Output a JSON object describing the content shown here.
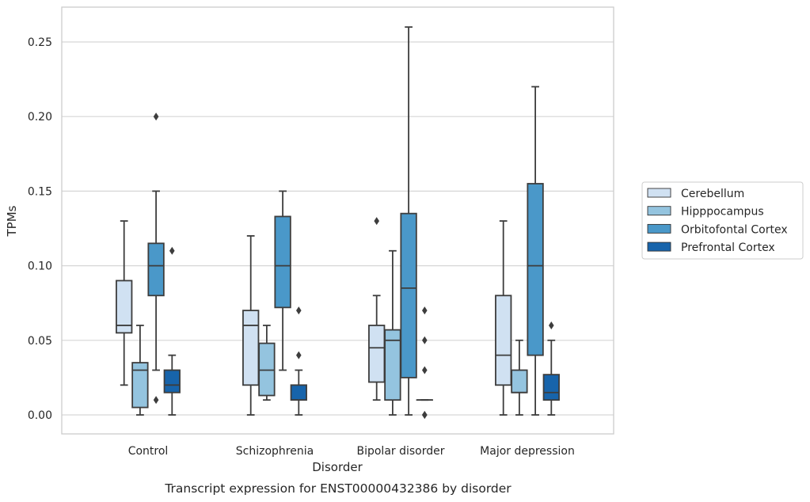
{
  "chart_data": {
    "type": "box",
    "title": "",
    "caption": "Transcript expression for ENST00000432386 by disorder",
    "xlabel": "Disorder",
    "ylabel": "TPMs",
    "ylim": [
      -0.0125,
      0.273
    ],
    "yticks": [
      "0.00",
      "0.05",
      "0.10",
      "0.15",
      "0.20",
      "0.25"
    ],
    "grid": true,
    "legend_position": "right",
    "categories": [
      "Control",
      "Schizophrenia",
      "Bipolar disorder",
      "Major depression"
    ],
    "series": [
      {
        "name": "Cerebellum",
        "color": "#d0e1f2",
        "boxes": [
          {
            "whisker_low": 0.02,
            "q1": 0.055,
            "median": 0.06,
            "q3": 0.09,
            "whisker_high": 0.13,
            "outliers": []
          },
          {
            "whisker_low": 0.0,
            "q1": 0.02,
            "median": 0.06,
            "q3": 0.07,
            "whisker_high": 0.12,
            "outliers": []
          },
          {
            "whisker_low": 0.01,
            "q1": 0.022,
            "median": 0.045,
            "q3": 0.06,
            "whisker_high": 0.08,
            "outliers": [
              0.13
            ]
          },
          {
            "whisker_low": 0.0,
            "q1": 0.02,
            "median": 0.04,
            "q3": 0.08,
            "whisker_high": 0.13,
            "outliers": []
          }
        ]
      },
      {
        "name": "Hipppocampus",
        "color": "#94c4df",
        "boxes": [
          {
            "whisker_low": 0.0,
            "q1": 0.005,
            "median": 0.03,
            "q3": 0.035,
            "whisker_high": 0.06,
            "outliers": []
          },
          {
            "whisker_low": 0.01,
            "q1": 0.013,
            "median": 0.03,
            "q3": 0.048,
            "whisker_high": 0.06,
            "outliers": []
          },
          {
            "whisker_low": 0.0,
            "q1": 0.01,
            "median": 0.05,
            "q3": 0.057,
            "whisker_high": 0.11,
            "outliers": []
          },
          {
            "whisker_low": 0.0,
            "q1": 0.015,
            "median": 0.015,
            "q3": 0.03,
            "whisker_high": 0.05,
            "outliers": []
          }
        ]
      },
      {
        "name": "Orbitofontal Cortex",
        "color": "#4a98c9",
        "boxes": [
          {
            "whisker_low": 0.03,
            "q1": 0.08,
            "median": 0.1,
            "q3": 0.115,
            "whisker_high": 0.15,
            "outliers": [
              0.2,
              0.01
            ]
          },
          {
            "whisker_low": 0.03,
            "q1": 0.072,
            "median": 0.1,
            "q3": 0.133,
            "whisker_high": 0.15,
            "outliers": []
          },
          {
            "whisker_low": 0.0,
            "q1": 0.025,
            "median": 0.085,
            "q3": 0.135,
            "whisker_high": 0.26,
            "outliers": []
          },
          {
            "whisker_low": 0.0,
            "q1": 0.04,
            "median": 0.1,
            "q3": 0.155,
            "whisker_high": 0.22,
            "outliers": []
          }
        ]
      },
      {
        "name": "Prefrontal Cortex",
        "color": "#1764ab",
        "boxes": [
          {
            "whisker_low": 0.0,
            "q1": 0.015,
            "median": 0.02,
            "q3": 0.03,
            "whisker_high": 0.04,
            "outliers": [
              0.11
            ]
          },
          {
            "whisker_low": 0.0,
            "q1": 0.01,
            "median": 0.01,
            "q3": 0.02,
            "whisker_high": 0.03,
            "outliers": [
              0.07,
              0.04
            ]
          },
          {
            "whisker_low": 0.01,
            "q1": 0.01,
            "median": 0.01,
            "q3": 0.01,
            "whisker_high": 0.01,
            "outliers": [
              0.07,
              0.05,
              0.03,
              0.0,
              0.0
            ]
          },
          {
            "whisker_low": 0.0,
            "q1": 0.01,
            "median": 0.015,
            "q3": 0.027,
            "whisker_high": 0.05,
            "outliers": [
              0.06
            ]
          }
        ]
      }
    ]
  }
}
